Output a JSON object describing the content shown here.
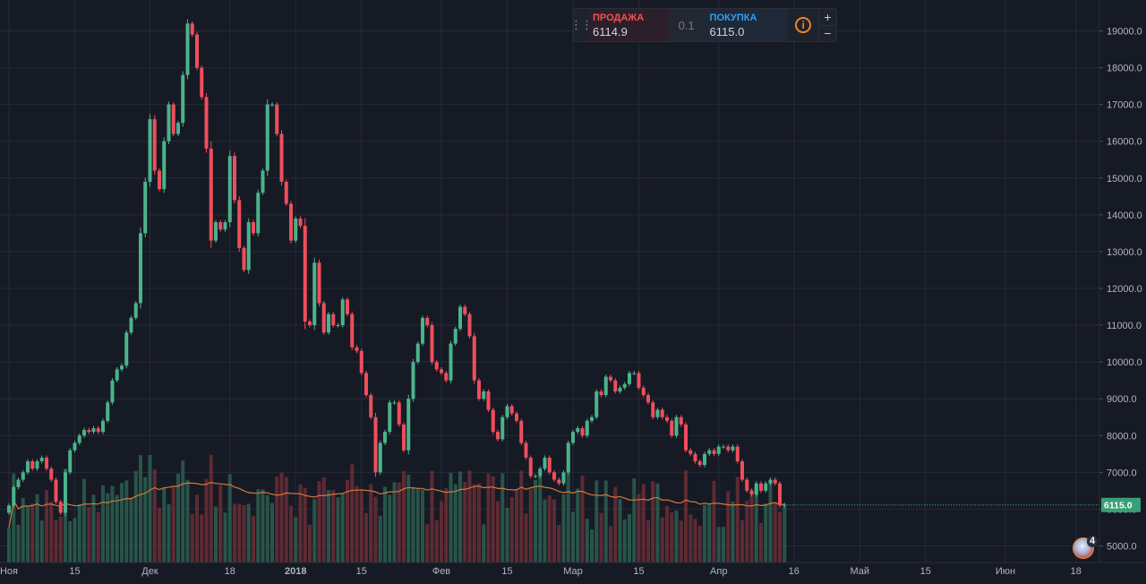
{
  "trade_widget": {
    "sell_label": "ПРОДАЖА",
    "sell_value": "6114.9",
    "spread": "0.1",
    "buy_label": "ПОКУПКА",
    "buy_value": "6115.0",
    "info_icon": "info-icon",
    "plus": "+",
    "minus": "−"
  },
  "events_badge_count": "4",
  "colors": {
    "background": "#161a25",
    "grid": "#262b38",
    "up": "#4bb38a",
    "down": "#ef4e5d",
    "volume_up": "#2c5f4f",
    "volume_down": "#6b2e36",
    "moving_average": "#d4793a",
    "axis_text": "#b2b5be",
    "last_price_label": "#3a9f75"
  },
  "chart_data": {
    "type": "candlestick",
    "price_scale": {
      "range": [
        4750,
        19450
      ],
      "ticks": [
        "5000.0",
        "6000.0",
        "7000.0",
        "8000.0",
        "9000.0",
        "10000.0",
        "11000.0",
        "12000.0",
        "13000.0",
        "14000.0",
        "15000.0",
        "16000.0",
        "17000.0",
        "18000.0",
        "19000.0"
      ],
      "tick_values": [
        5000,
        6000,
        7000,
        8000,
        9000,
        10000,
        11000,
        12000,
        13000,
        14000,
        15000,
        16000,
        17000,
        18000,
        19000
      ]
    },
    "time_axis": {
      "labels": [
        "Ноя",
        "15",
        "Дек",
        "18",
        "2018",
        "15",
        "Фев",
        "15",
        "Мар",
        "15",
        "Апр",
        "16",
        "Май",
        "15",
        "Июн",
        "18"
      ],
      "label_bar_index": [
        0,
        14,
        30,
        47,
        61,
        75,
        92,
        106,
        120,
        134,
        151,
        167,
        181,
        195,
        212,
        227
      ]
    },
    "last_price": "6115.0",
    "closes": [
      6100,
      6600,
      6800,
      7000,
      7300,
      7100,
      7300,
      7400,
      7100,
      6800,
      6200,
      5900,
      7000,
      7600,
      7800,
      8000,
      8150,
      8100,
      8200,
      8100,
      8400,
      8900,
      9500,
      9800,
      9900,
      10800,
      11200,
      11600,
      13500,
      14900,
      16600,
      15200,
      14700,
      16000,
      17000,
      16200,
      16500,
      17800,
      19200,
      18900,
      18000,
      17200,
      15800,
      13300,
      13800,
      13600,
      13800,
      15600,
      14400,
      13100,
      12500,
      13800,
      13500,
      14600,
      15200,
      17000,
      17000,
      16200,
      14900,
      14300,
      13300,
      13900,
      13700,
      11100,
      11000,
      12700,
      11600,
      10800,
      11300,
      11000,
      11000,
      11700,
      11300,
      10400,
      10300,
      9700,
      9100,
      8500,
      7000,
      7800,
      8100,
      8900,
      8900,
      8300,
      7600,
      9000,
      10000,
      10500,
      11200,
      11000,
      10000,
      9800,
      9700,
      9500,
      10500,
      10900,
      11500,
      11300,
      10700,
      9500,
      9000,
      9200,
      8700,
      8100,
      7900,
      8500,
      8800,
      8600,
      8400,
      7800,
      7400,
      6900,
      6900,
      7100,
      7400,
      7000,
      6800,
      6700,
      7000,
      7800,
      8100,
      8200,
      8000,
      8400,
      8500,
      9200,
      9100,
      9600,
      9500,
      9200,
      9300,
      9400,
      9700,
      9700,
      9300,
      9100,
      8900,
      8500,
      8700,
      8500,
      8400,
      8000,
      8500,
      8300,
      7600,
      7500,
      7300,
      7200,
      7500,
      7600,
      7500,
      7700,
      7700,
      7600,
      7700,
      7300,
      6800,
      6500,
      6400,
      6700,
      6500,
      6700,
      6800,
      6700,
      6100,
      6115
    ],
    "volume_series_visible": true,
    "moving_average_on_volume": true
  }
}
